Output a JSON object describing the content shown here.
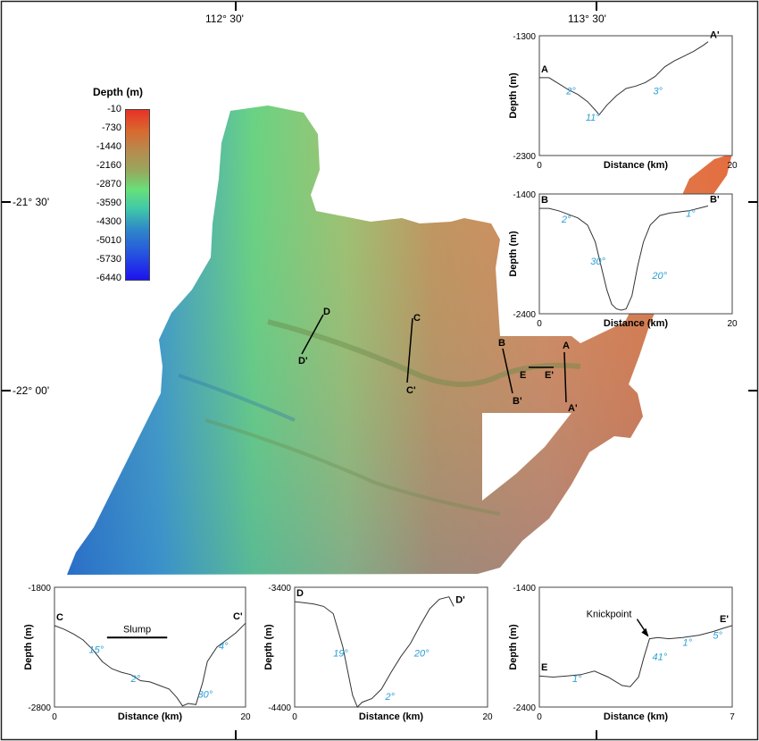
{
  "map": {
    "lon_labels": [
      "112° 30'",
      "113° 30'"
    ],
    "lat_labels": [
      "-21° 30'",
      "-22° 00'"
    ]
  },
  "legend": {
    "title": "Depth (m)",
    "ticks": [
      "-10",
      "-730",
      "-1440",
      "-2160",
      "-2870",
      "-3590",
      "-4300",
      "-5010",
      "-5730",
      "-6440"
    ],
    "colors": [
      "#e83126",
      "#d9682e",
      "#b78a4e",
      "#97a85c",
      "#67e07a",
      "#40c9a8",
      "#2f89c8",
      "#2656df",
      "#1d12f0"
    ]
  },
  "section_labels": [
    "A",
    "A'",
    "B",
    "B'",
    "C",
    "C'",
    "D",
    "D'",
    "E",
    "E'"
  ],
  "chart_data": [
    {
      "id": "A",
      "type": "line",
      "start_label": "A",
      "end_label": "A'",
      "xlabel": "Distance (km)",
      "ylabel": "Depth (m)",
      "xlim": [
        0,
        20
      ],
      "ylim": [
        -2300,
        -1300
      ],
      "x_ticks": [
        "0",
        "20"
      ],
      "y_ticks": [
        "-1300",
        "-2300"
      ],
      "x": [
        0,
        1,
        2,
        3,
        4,
        5,
        5.8,
        6.2,
        7,
        8,
        9,
        10,
        11,
        12,
        13,
        14,
        15,
        16,
        17,
        17.5
      ],
      "y": [
        -1650,
        -1650,
        -1700,
        -1750,
        -1790,
        -1850,
        -1920,
        -1960,
        -1880,
        -1800,
        -1740,
        -1720,
        -1690,
        -1640,
        -1560,
        -1510,
        -1470,
        -1430,
        -1380,
        -1350
      ],
      "annotations": [
        {
          "text": "2°",
          "x": 2.8,
          "y": -1790
        },
        {
          "text": "11°",
          "x": 4.8,
          "y": -2010
        },
        {
          "text": "3°",
          "x": 11.8,
          "y": -1790
        }
      ]
    },
    {
      "id": "B",
      "type": "line",
      "start_label": "B",
      "end_label": "B'",
      "xlabel": "Distance (km)",
      "ylabel": "Depth (m)",
      "xlim": [
        0,
        20
      ],
      "ylim": [
        -2400,
        -1400
      ],
      "x_ticks": [
        "0",
        "20"
      ],
      "y_ticks": [
        "-1400",
        "-2400"
      ],
      "x": [
        0,
        1,
        2,
        3,
        4,
        5,
        5.8,
        6.4,
        7,
        7.5,
        8,
        8.5,
        9,
        9.6,
        10.2,
        10.8,
        11.5,
        12.5,
        13.5,
        14.5,
        15.5,
        16.5,
        17.5
      ],
      "y": [
        -1520,
        -1520,
        -1540,
        -1570,
        -1600,
        -1660,
        -1800,
        -2000,
        -2200,
        -2320,
        -2360,
        -2370,
        -2360,
        -2250,
        -2000,
        -1800,
        -1660,
        -1580,
        -1560,
        -1550,
        -1540,
        -1520,
        -1500
      ],
      "annotations": [
        {
          "text": "2°",
          "x": 2.3,
          "y": -1640
        },
        {
          "text": "30°",
          "x": 5.3,
          "y": -1990
        },
        {
          "text": "20°",
          "x": 11.7,
          "y": -2110
        },
        {
          "text": "1°",
          "x": 15.2,
          "y": -1590
        }
      ]
    },
    {
      "id": "C",
      "type": "line",
      "start_label": "C",
      "end_label": "C'",
      "xlabel": "Distance (km)",
      "ylabel": "Depth (m)",
      "xlim": [
        0,
        20
      ],
      "ylim": [
        -2800,
        -1800
      ],
      "x_ticks": [
        "0",
        "20"
      ],
      "y_ticks": [
        "-1800",
        "-2800"
      ],
      "x": [
        0,
        1,
        2,
        3,
        4,
        5,
        6,
        7,
        8,
        9,
        10,
        11,
        12,
        12.8,
        13.4,
        14,
        14.8,
        15.5,
        16,
        17,
        18,
        19,
        20
      ],
      "y": [
        -2120,
        -2150,
        -2190,
        -2240,
        -2320,
        -2420,
        -2480,
        -2510,
        -2530,
        -2580,
        -2590,
        -2620,
        -2650,
        -2720,
        -2790,
        -2770,
        -2780,
        -2600,
        -2420,
        -2300,
        -2240,
        -2180,
        -2100
      ],
      "annotations": [
        {
          "text": "15°",
          "x": 3.6,
          "y": -2350
        },
        {
          "text": "2°",
          "x": 8.0,
          "y": -2590
        },
        {
          "text": "30°",
          "x": 15.0,
          "y": -2720
        },
        {
          "text": "4°",
          "x": 17.2,
          "y": -2320
        }
      ],
      "slump": {
        "label": "Slump",
        "x_start": 5.5,
        "x_end": 11.8,
        "y": -2220
      }
    },
    {
      "id": "D",
      "type": "line",
      "start_label": "D",
      "end_label": "D'",
      "xlabel": "Distance (km)",
      "ylabel": "Depth (m)",
      "xlim": [
        0,
        20
      ],
      "ylim": [
        -4400,
        -3400
      ],
      "x_ticks": [
        "0",
        "20"
      ],
      "y_ticks": [
        "-3400",
        "-4400"
      ],
      "x": [
        0,
        1,
        2,
        3,
        4,
        5,
        6,
        6.5,
        7,
        8,
        9,
        10,
        11,
        12,
        13,
        14,
        15,
        16,
        16.5
      ],
      "y": [
        -3520,
        -3530,
        -3540,
        -3560,
        -3620,
        -3900,
        -4300,
        -4400,
        -4360,
        -4330,
        -4250,
        -4110,
        -3980,
        -3870,
        -3720,
        -3580,
        -3500,
        -3480,
        -3560
      ],
      "annotations": [
        {
          "text": "19°",
          "x": 4.0,
          "y": -3980
        },
        {
          "text": "2°",
          "x": 9.4,
          "y": -4340
        },
        {
          "text": "20°",
          "x": 12.4,
          "y": -3980
        }
      ]
    },
    {
      "id": "E",
      "type": "line",
      "start_label": "E",
      "end_label": "E'",
      "xlabel": "Distance (km)",
      "ylabel": "Depth (m)",
      "xlim": [
        0,
        7
      ],
      "ylim": [
        -2400,
        -1400
      ],
      "x_ticks": [
        "0",
        "7"
      ],
      "y_ticks": [
        "-1400",
        "-2400"
      ],
      "x": [
        0,
        0.5,
        1,
        1.5,
        2,
        2.5,
        3,
        3.3,
        3.6,
        3.8,
        4,
        4.3,
        4.7,
        5.2,
        5.8,
        6.3,
        6.7,
        7
      ],
      "y": [
        -2140,
        -2150,
        -2140,
        -2130,
        -2100,
        -2150,
        -2220,
        -2230,
        -2150,
        -1980,
        -1830,
        -1820,
        -1830,
        -1820,
        -1800,
        -1770,
        -1740,
        -1720
      ],
      "annotations": [
        {
          "text": "1°",
          "x": 1.2,
          "y": -2190
        },
        {
          "text": "41°",
          "x": 4.1,
          "y": -2010
        },
        {
          "text": "1°",
          "x": 5.2,
          "y": -1890
        },
        {
          "text": "5°",
          "x": 6.3,
          "y": -1830
        }
      ],
      "knickpoint": {
        "label": "Knickpoint",
        "x": 4.0,
        "y": -1830
      }
    }
  ]
}
